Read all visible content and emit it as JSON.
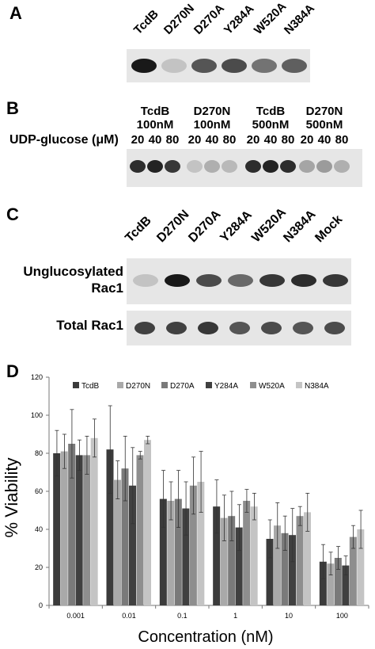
{
  "panel_a": {
    "label": "A",
    "lanes": [
      "TcdB",
      "D270N",
      "D270A",
      "Y284A",
      "W520A",
      "N384A"
    ],
    "intensity": [
      1.0,
      0.15,
      0.7,
      0.75,
      0.55,
      0.65
    ]
  },
  "panel_b": {
    "label": "B",
    "groups": [
      {
        "name": "TcdB",
        "conc": "100nM"
      },
      {
        "name": "D270N",
        "conc": "100nM"
      },
      {
        "name": "TcdB",
        "conc": "500nM"
      },
      {
        "name": "D270N",
        "conc": "500nM"
      }
    ],
    "udp_label": "UDP-glucose (μM)",
    "doses": [
      "20",
      "40",
      "80"
    ],
    "intensity": [
      0.9,
      0.95,
      0.85,
      0.15,
      0.25,
      0.2,
      0.9,
      0.95,
      0.9,
      0.3,
      0.35,
      0.25
    ]
  },
  "panel_c": {
    "label": "C",
    "lanes": [
      "TcdB",
      "D270N",
      "D270A",
      "Y284A",
      "W520A",
      "N384A",
      "Mock"
    ],
    "row1_label": "Unglucosylated Rac1",
    "row1_intensity": [
      0.15,
      1.0,
      0.75,
      0.6,
      0.85,
      0.9,
      0.85
    ],
    "row2_label": "Total Rac1",
    "row2_intensity": [
      0.8,
      0.8,
      0.85,
      0.7,
      0.75,
      0.7,
      0.75
    ]
  },
  "panel_d": {
    "label": "D",
    "chart_data": {
      "type": "bar",
      "categories": [
        "0.001",
        "0.01",
        "0.1",
        "1",
        "10",
        "100"
      ],
      "series": [
        {
          "name": "TcdB",
          "color": "#3b3b3b",
          "values": [
            80,
            82,
            56,
            52,
            35,
            23
          ],
          "errors": [
            12,
            23,
            15,
            14,
            10,
            9
          ]
        },
        {
          "name": "D270N",
          "color": "#a9a9a9",
          "values": [
            81,
            66,
            55,
            46,
            42,
            22
          ],
          "errors": [
            9,
            10,
            10,
            12,
            12,
            6
          ]
        },
        {
          "name": "D270A",
          "color": "#7a7a7a",
          "values": [
            85,
            72,
            56,
            47,
            38,
            25
          ],
          "errors": [
            18,
            17,
            15,
            13,
            9,
            6
          ]
        },
        {
          "name": "Y284A",
          "color": "#404040",
          "values": [
            79,
            63,
            51,
            41,
            37,
            21
          ],
          "errors": [
            8,
            20,
            14,
            12,
            14,
            5
          ]
        },
        {
          "name": "W520A",
          "color": "#8e8e8e",
          "values": [
            79,
            79,
            63,
            55,
            47,
            36
          ],
          "errors": [
            10,
            2,
            15,
            6,
            5,
            6
          ]
        },
        {
          "name": "N384A",
          "color": "#c4c4c4",
          "values": [
            88,
            87,
            65,
            52,
            49,
            40
          ],
          "errors": [
            10,
            2,
            16,
            7,
            10,
            10
          ]
        }
      ],
      "xlabel": "Concentration (nM)",
      "ylabel": "% Viability",
      "ylim": [
        0,
        120
      ],
      "yticks": [
        "0",
        "20",
        "40",
        "60",
        "80",
        "100",
        "120"
      ],
      "grid": false,
      "legend": "top"
    }
  }
}
